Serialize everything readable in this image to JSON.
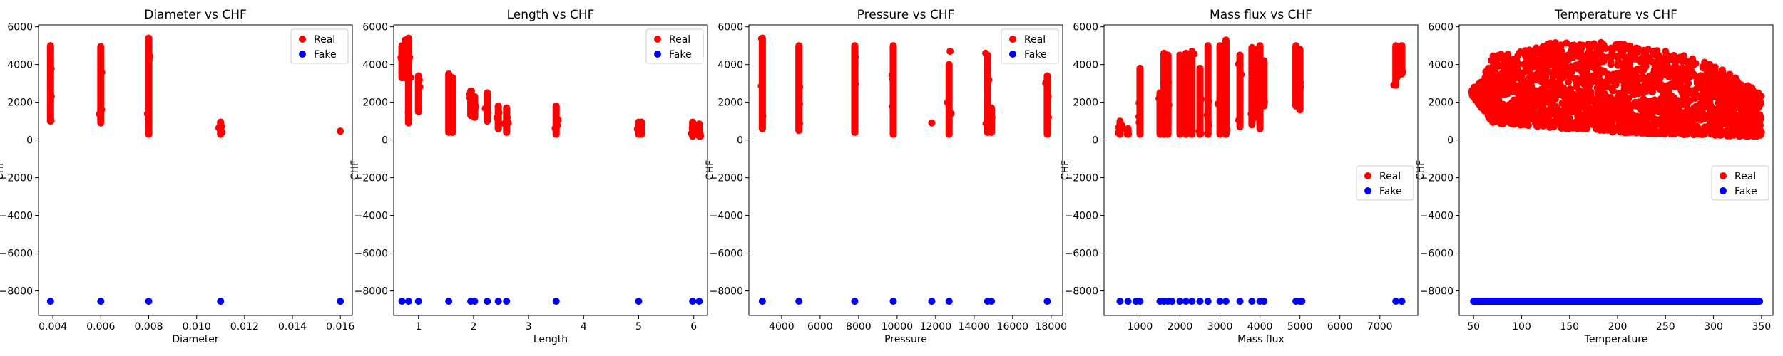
{
  "colors": {
    "real": "#ff0000",
    "fake": "#0000ff"
  },
  "chart_data": [
    {
      "type": "scatter",
      "title": "Diameter vs CHF",
      "xlabel": "Diameter",
      "ylabel": "CHF",
      "xlim": [
        0.0034,
        0.0165
      ],
      "ylim": [
        -9300,
        6100
      ],
      "xticks": [
        0.004,
        0.006,
        0.008,
        0.01,
        0.012,
        0.014,
        0.016
      ],
      "xtick_labels": [
        "0.004",
        "0.006",
        "0.008",
        "0.010",
        "0.012",
        "0.014",
        "0.016"
      ],
      "yticks": [
        -8000,
        -6000,
        -4000,
        -2000,
        0,
        2000,
        4000,
        6000
      ],
      "ytick_labels": [
        "−8000",
        "−6000",
        "−4000",
        "−2000",
        "0",
        "2000",
        "4000",
        "6000"
      ],
      "legend": {
        "position": "top-right",
        "entries": [
          "Real",
          "Fake"
        ]
      },
      "series": [
        {
          "name": "Real",
          "color": "#ff0000",
          "ranges": [
            {
              "x": 0.0039,
              "y": [
                1000,
                5000
              ]
            },
            {
              "x": 0.006,
              "y": [
                900,
                4950
              ]
            },
            {
              "x": 0.008,
              "y": [
                300,
                5400
              ]
            },
            {
              "x": 0.011,
              "y": [
                300,
                950
              ]
            }
          ],
          "points": [
            {
              "x": 0.016,
              "y": 470
            }
          ]
        },
        {
          "name": "Fake",
          "color": "#0000ff",
          "points": [
            {
              "x": 0.0039,
              "y": -8550
            },
            {
              "x": 0.006,
              "y": -8550
            },
            {
              "x": 0.008,
              "y": -8550
            },
            {
              "x": 0.011,
              "y": -8550
            },
            {
              "x": 0.016,
              "y": -8550
            }
          ]
        }
      ]
    },
    {
      "type": "scatter",
      "title": "Length vs CHF",
      "xlabel": "Length",
      "ylabel": "CHF",
      "xlim": [
        0.55,
        6.25
      ],
      "ylim": [
        -9300,
        6100
      ],
      "xticks": [
        1,
        2,
        3,
        4,
        5,
        6
      ],
      "xtick_labels": [
        "1",
        "2",
        "3",
        "4",
        "5",
        "6"
      ],
      "yticks": [
        -8000,
        -6000,
        -4000,
        -2000,
        0,
        2000,
        4000,
        6000
      ],
      "ytick_labels": [
        "−8000",
        "−6000",
        "−4000",
        "−2000",
        "0",
        "2000",
        "4000",
        "6000"
      ],
      "legend": {
        "position": "top-right",
        "entries": [
          "Real",
          "Fake"
        ]
      },
      "series": [
        {
          "name": "Real",
          "color": "#ff0000",
          "ranges": [
            {
              "x": 0.7,
              "y": [
                3300,
                5000
              ]
            },
            {
              "x": 0.76,
              "y": [
                3300,
                5300
              ]
            },
            {
              "x": 0.82,
              "y": [
                900,
                5400
              ]
            },
            {
              "x": 1.0,
              "y": [
                1500,
                3400
              ]
            },
            {
              "x": 1.55,
              "y": [
                400,
                3500
              ]
            },
            {
              "x": 1.62,
              "y": [
                400,
                3300
              ]
            },
            {
              "x": 1.95,
              "y": [
                1300,
                2600
              ]
            },
            {
              "x": 2.02,
              "y": [
                1200,
                2300
              ]
            },
            {
              "x": 2.25,
              "y": [
                1000,
                2500
              ]
            },
            {
              "x": 2.45,
              "y": [
                600,
                1800
              ]
            },
            {
              "x": 2.6,
              "y": [
                400,
                1700
              ]
            },
            {
              "x": 3.5,
              "y": [
                300,
                1800
              ]
            },
            {
              "x": 5.0,
              "y": [
                300,
                950
              ]
            },
            {
              "x": 5.05,
              "y": [
                300,
                950
              ]
            },
            {
              "x": 5.98,
              "y": [
                200,
                950
              ]
            },
            {
              "x": 6.1,
              "y": [
                200,
                850
              ]
            }
          ],
          "points": []
        },
        {
          "name": "Fake",
          "color": "#0000ff",
          "points": [
            {
              "x": 0.7,
              "y": -8550
            },
            {
              "x": 0.82,
              "y": -8550
            },
            {
              "x": 1.0,
              "y": -8550
            },
            {
              "x": 1.55,
              "y": -8550
            },
            {
              "x": 1.95,
              "y": -8550
            },
            {
              "x": 2.02,
              "y": -8550
            },
            {
              "x": 2.25,
              "y": -8550
            },
            {
              "x": 2.45,
              "y": -8550
            },
            {
              "x": 2.6,
              "y": -8550
            },
            {
              "x": 3.5,
              "y": -8550
            },
            {
              "x": 5.0,
              "y": -8550
            },
            {
              "x": 5.98,
              "y": -8550
            },
            {
              "x": 6.1,
              "y": -8550
            }
          ]
        }
      ]
    },
    {
      "type": "scatter",
      "title": "Pressure vs CHF",
      "xlabel": "Pressure",
      "ylabel": "CHF",
      "xlim": [
        2300,
        18600
      ],
      "ylim": [
        -9300,
        6100
      ],
      "xticks": [
        4000,
        6000,
        8000,
        10000,
        12000,
        14000,
        16000,
        18000
      ],
      "xtick_labels": [
        "4000",
        "6000",
        "8000",
        "10000",
        "12000",
        "14000",
        "16000",
        "18000"
      ],
      "yticks": [
        -8000,
        -6000,
        -4000,
        -2000,
        0,
        2000,
        4000,
        6000
      ],
      "ytick_labels": [
        "−8000",
        "−6000",
        "−4000",
        "−2000",
        "0",
        "2000",
        "4000",
        "6000"
      ],
      "legend": {
        "position": "top-right",
        "entries": [
          "Real",
          "Fake"
        ]
      },
      "series": [
        {
          "name": "Real",
          "color": "#ff0000",
          "ranges": [
            {
              "x": 3000,
              "y": [
                600,
                5400
              ]
            },
            {
              "x": 4900,
              "y": [
                500,
                5000
              ]
            },
            {
              "x": 7800,
              "y": [
                400,
                5000
              ]
            },
            {
              "x": 9800,
              "y": [
                300,
                5000
              ]
            },
            {
              "x": 12700,
              "y": [
                300,
                4000
              ]
            },
            {
              "x": 14700,
              "y": [
                400,
                4500
              ]
            },
            {
              "x": 14900,
              "y": [
                400,
                1700
              ]
            },
            {
              "x": 17800,
              "y": [
                300,
                3400
              ]
            }
          ],
          "points": [
            {
              "x": 11800,
              "y": 900
            },
            {
              "x": 12750,
              "y": 4700
            },
            {
              "x": 14600,
              "y": 4600
            }
          ]
        },
        {
          "name": "Fake",
          "color": "#0000ff",
          "points": [
            {
              "x": 3000,
              "y": -8550
            },
            {
              "x": 4900,
              "y": -8550
            },
            {
              "x": 7800,
              "y": -8550
            },
            {
              "x": 9800,
              "y": -8550
            },
            {
              "x": 11800,
              "y": -8550
            },
            {
              "x": 12700,
              "y": -8550
            },
            {
              "x": 14700,
              "y": -8550
            },
            {
              "x": 14900,
              "y": -8550
            },
            {
              "x": 17800,
              "y": -8550
            }
          ]
        }
      ]
    },
    {
      "type": "scatter",
      "title": "Mass flux vs CHF",
      "xlabel": "Mass flux",
      "ylabel": "CHF",
      "xlim": [
        100,
        7950
      ],
      "ylim": [
        -9300,
        6100
      ],
      "xticks": [
        1000,
        2000,
        3000,
        4000,
        5000,
        6000,
        7000
      ],
      "xtick_labels": [
        "1000",
        "2000",
        "3000",
        "4000",
        "5000",
        "6000",
        "7000"
      ],
      "yticks": [
        -8000,
        -6000,
        -4000,
        -2000,
        0,
        2000,
        4000,
        6000
      ],
      "ytick_labels": [
        "−8000",
        "−6000",
        "−4000",
        "−2000",
        "0",
        "2000",
        "4000",
        "6000"
      ],
      "legend": {
        "position": "center-right",
        "entries": [
          "Real",
          "Fake"
        ]
      },
      "series": [
        {
          "name": "Real",
          "color": "#ff0000",
          "ranges": [
            {
              "x": 500,
              "y": [
                300,
                1000
              ]
            },
            {
              "x": 700,
              "y": [
                300,
                600
              ]
            },
            {
              "x": 1000,
              "y": [
                300,
                3800
              ]
            },
            {
              "x": 1500,
              "y": [
                300,
                2500
              ]
            },
            {
              "x": 1600,
              "y": [
                300,
                4600
              ]
            },
            {
              "x": 1700,
              "y": [
                300,
                4500
              ]
            },
            {
              "x": 2000,
              "y": [
                300,
                4500
              ]
            },
            {
              "x": 2150,
              "y": [
                300,
                4600
              ]
            },
            {
              "x": 2300,
              "y": [
                300,
                4700
              ]
            },
            {
              "x": 2500,
              "y": [
                300,
                3800
              ]
            },
            {
              "x": 2700,
              "y": [
                300,
                5000
              ]
            },
            {
              "x": 3000,
              "y": [
                300,
                5000
              ]
            },
            {
              "x": 3150,
              "y": [
                300,
                5300
              ]
            },
            {
              "x": 3500,
              "y": [
                700,
                4500
              ]
            },
            {
              "x": 3800,
              "y": [
                800,
                4900
              ]
            },
            {
              "x": 3900,
              "y": [
                1200,
                4800
              ]
            },
            {
              "x": 4000,
              "y": [
                600,
                5000
              ]
            },
            {
              "x": 4100,
              "y": [
                1800,
                4200
              ]
            },
            {
              "x": 4900,
              "y": [
                1800,
                5000
              ]
            },
            {
              "x": 5000,
              "y": [
                1600,
                4800
              ]
            },
            {
              "x": 7400,
              "y": [
                2900,
                5000
              ]
            },
            {
              "x": 7550,
              "y": [
                3500,
                5000
              ]
            }
          ],
          "points": []
        },
        {
          "name": "Fake",
          "color": "#0000ff",
          "points": [
            {
              "x": 500,
              "y": -8550
            },
            {
              "x": 700,
              "y": -8550
            },
            {
              "x": 900,
              "y": -8550
            },
            {
              "x": 1000,
              "y": -8550
            },
            {
              "x": 1500,
              "y": -8550
            },
            {
              "x": 1600,
              "y": -8550
            },
            {
              "x": 1700,
              "y": -8550
            },
            {
              "x": 1800,
              "y": -8550
            },
            {
              "x": 2000,
              "y": -8550
            },
            {
              "x": 2150,
              "y": -8550
            },
            {
              "x": 2300,
              "y": -8550
            },
            {
              "x": 2500,
              "y": -8550
            },
            {
              "x": 2700,
              "y": -8550
            },
            {
              "x": 3000,
              "y": -8550
            },
            {
              "x": 3150,
              "y": -8550
            },
            {
              "x": 3500,
              "y": -8550
            },
            {
              "x": 3800,
              "y": -8550
            },
            {
              "x": 4000,
              "y": -8550
            },
            {
              "x": 4100,
              "y": -8550
            },
            {
              "x": 4900,
              "y": -8550
            },
            {
              "x": 5000,
              "y": -8550
            },
            {
              "x": 5050,
              "y": -8550
            },
            {
              "x": 7400,
              "y": -8550
            },
            {
              "x": 7550,
              "y": -8550
            }
          ]
        }
      ]
    },
    {
      "type": "scatter",
      "title": "Temperature vs CHF",
      "xlabel": "Temperature",
      "ylabel": "CHF",
      "xlim": [
        35,
        362
      ],
      "ylim": [
        -9300,
        6100
      ],
      "xticks": [
        50,
        100,
        150,
        200,
        250,
        300,
        350
      ],
      "xtick_labels": [
        "50",
        "100",
        "150",
        "200",
        "250",
        "300",
        "350"
      ],
      "yticks": [
        -8000,
        -6000,
        -4000,
        -2000,
        0,
        2000,
        4000,
        6000
      ],
      "ytick_labels": [
        "−8000",
        "−6000",
        "−4000",
        "−2000",
        "0",
        "2000",
        "4000",
        "6000"
      ],
      "legend": {
        "position": "center-right",
        "entries": [
          "Real",
          "Fake"
        ]
      },
      "series": [
        {
          "name": "Real",
          "color": "#ff0000",
          "cloud": {
            "x_range": [
              48,
              350
            ],
            "upper_envelope": [
              [
                48,
                2800
              ],
              [
                60,
                3300
              ],
              [
                70,
                4600
              ],
              [
                100,
                4700
              ],
              [
                140,
                5300
              ],
              [
                180,
                5200
              ],
              [
                220,
                5000
              ],
              [
                260,
                4600
              ],
              [
                300,
                4000
              ],
              [
                340,
                2800
              ],
              [
                350,
                2500
              ]
            ],
            "lower_envelope": [
              [
                48,
                2400
              ],
              [
                70,
                900
              ],
              [
                120,
                700
              ],
              [
                200,
                400
              ],
              [
                260,
                300
              ],
              [
                320,
                200
              ],
              [
                350,
                200
              ]
            ]
          }
        },
        {
          "name": "Fake",
          "color": "#0000ff",
          "x_range": [
            50,
            348
          ],
          "y": -8550
        }
      ]
    }
  ]
}
